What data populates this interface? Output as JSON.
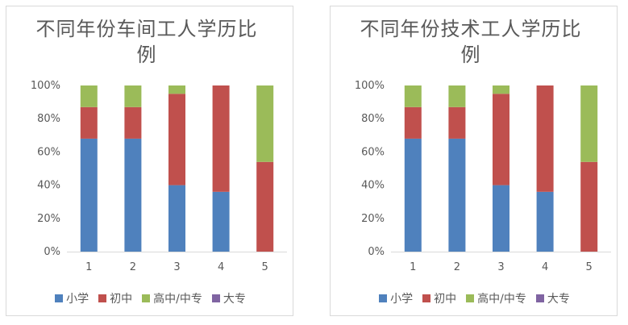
{
  "chart_data": [
    {
      "type": "bar",
      "stacked": true,
      "title": "不同年份车间工人学历比例",
      "categories": [
        "1",
        "2",
        "3",
        "4",
        "5"
      ],
      "ylim": [
        0,
        1
      ],
      "yticks": [
        "0%",
        "20%",
        "40%",
        "60%",
        "80%",
        "100%"
      ],
      "grid": false,
      "legend_position": "bottom",
      "series": [
        {
          "name": "小学",
          "color": "#4f81bd",
          "values": [
            0.68,
            0.68,
            0.4,
            0.36,
            0.0
          ]
        },
        {
          "name": "初中",
          "color": "#c0504d",
          "values": [
            0.19,
            0.19,
            0.55,
            0.64,
            0.54
          ]
        },
        {
          "name": "高中/中专",
          "color": "#9bbb59",
          "values": [
            0.13,
            0.13,
            0.05,
            0.0,
            0.46
          ]
        },
        {
          "name": "大专",
          "color": "#8064a2",
          "values": [
            0.0,
            0.0,
            0.0,
            0.0,
            0.0
          ]
        }
      ]
    },
    {
      "type": "bar",
      "stacked": true,
      "title": "不同年份技术工人学历比例",
      "categories": [
        "1",
        "2",
        "3",
        "4",
        "5"
      ],
      "ylim": [
        0,
        1
      ],
      "yticks": [
        "0%",
        "20%",
        "40%",
        "60%",
        "80%",
        "100%"
      ],
      "grid": false,
      "legend_position": "bottom",
      "series": [
        {
          "name": "小学",
          "color": "#4f81bd",
          "values": [
            0.68,
            0.68,
            0.4,
            0.36,
            0.0
          ]
        },
        {
          "name": "初中",
          "color": "#c0504d",
          "values": [
            0.19,
            0.19,
            0.55,
            0.64,
            0.54
          ]
        },
        {
          "name": "高中/中专",
          "color": "#9bbb59",
          "values": [
            0.13,
            0.13,
            0.05,
            0.0,
            0.46
          ]
        },
        {
          "name": "大专",
          "color": "#8064a2",
          "values": [
            0.0,
            0.0,
            0.0,
            0.0,
            0.0
          ]
        }
      ]
    }
  ]
}
